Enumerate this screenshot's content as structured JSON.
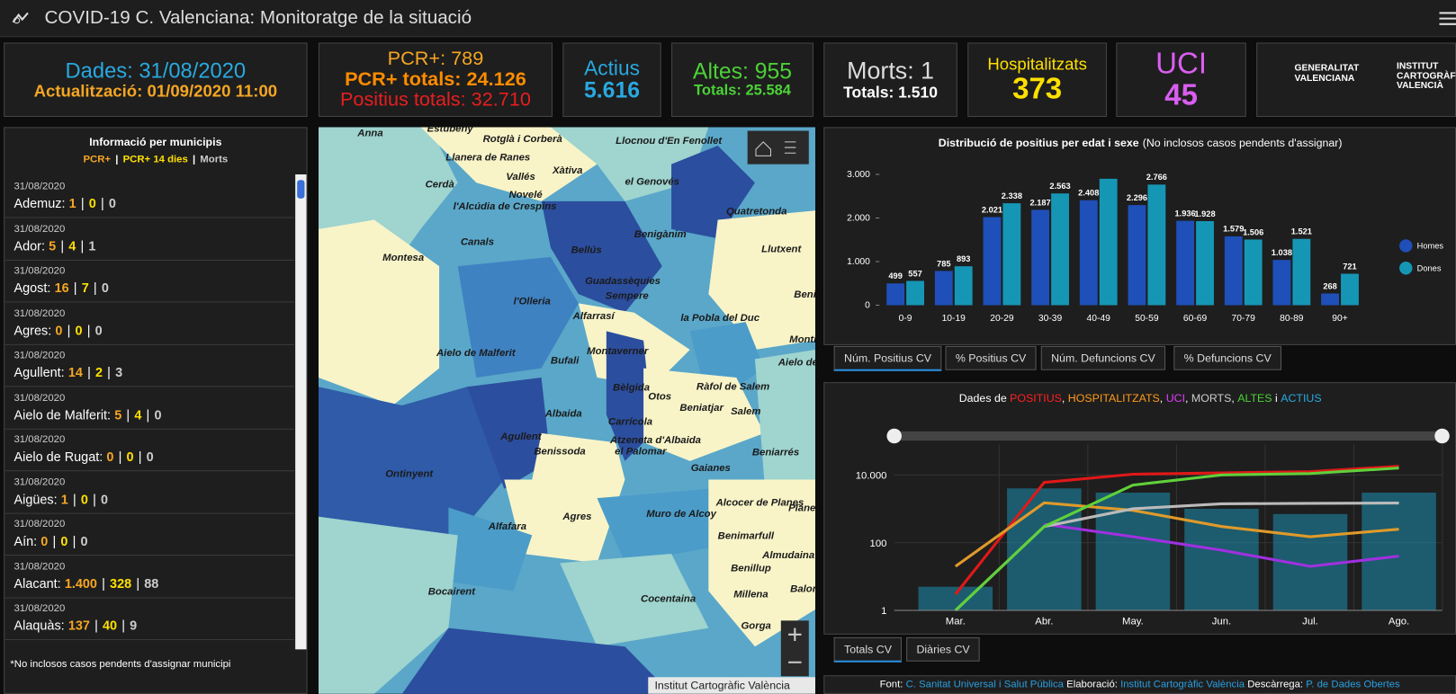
{
  "header": {
    "title": "COVID-19 C. Valenciana: Monitoratge de la situació"
  },
  "kpis": [
    {
      "lines": [
        "Dades: 31/08/2020",
        "Actualització: 01/09/2020 11:00"
      ]
    },
    {
      "lines": [
        "PCR+: 789",
        "PCR+ totals: 24.126",
        "Positius totals: 32.710"
      ]
    },
    {
      "lines": [
        "Actius",
        "5.616"
      ]
    },
    {
      "lines": [
        "Altes: 955",
        "Totals: 25.584"
      ]
    },
    {
      "lines": [
        "Morts: 1",
        "Totals: 1.510"
      ]
    },
    {
      "lines": [
        "Hospitalitzats",
        "373"
      ]
    },
    {
      "lines": [
        "UCI",
        "45"
      ]
    }
  ],
  "logos": [
    [
      "GENERALITAT",
      "VALENCIANA"
    ],
    [
      "INSTITUT",
      "CARTOGRÀFIC",
      "VALENCIÀ"
    ]
  ],
  "municipis": {
    "title": "Informació per municipis",
    "legend": [
      "PCR+",
      "PCR+ 14 dies",
      "Morts"
    ],
    "separator": "|",
    "items": [
      {
        "date": "31/08/2020",
        "name": "Ademuz:",
        "values": [
          "1",
          "0",
          "0"
        ]
      },
      {
        "date": "31/08/2020",
        "name": "Ador:",
        "values": [
          "5",
          "4",
          "1"
        ]
      },
      {
        "date": "31/08/2020",
        "name": "Agost:",
        "values": [
          "16",
          "7",
          "0"
        ]
      },
      {
        "date": "31/08/2020",
        "name": "Agres:",
        "values": [
          "0",
          "0",
          "0"
        ]
      },
      {
        "date": "31/08/2020",
        "name": "Agullent:",
        "values": [
          "14",
          "2",
          "3"
        ]
      },
      {
        "date": "31/08/2020",
        "name": "Aielo de Malferit:",
        "values": [
          "5",
          "4",
          "0"
        ]
      },
      {
        "date": "31/08/2020",
        "name": "Aielo de Rugat:",
        "values": [
          "0",
          "0",
          "0"
        ]
      },
      {
        "date": "31/08/2020",
        "name": "Aigües:",
        "values": [
          "1",
          "0",
          "0"
        ]
      },
      {
        "date": "31/08/2020",
        "name": "Aín:",
        "values": [
          "0",
          "0",
          "0"
        ]
      },
      {
        "date": "31/08/2020",
        "name": "Alacant:",
        "values": [
          "1.400",
          "328",
          "88"
        ]
      },
      {
        "date": "31/08/2020",
        "name": "Alaquàs:",
        "values": [
          "137",
          "40",
          "9"
        ]
      }
    ],
    "footnote": "*No inclosos casos pendents d'assignar municipi"
  },
  "map": {
    "labels": [
      "Anna",
      "Estubeny",
      "Rotglà i Corberà",
      "Llocnou d'En Fenollet",
      "Llanera de Ranes",
      "Vallés",
      "Xàtiva",
      "Cerdà",
      "Novelé",
      "l'Alcúdia de Crespins",
      "el Genovés",
      "Canals",
      "Montesa",
      "Quatretonda",
      "Benigànim",
      "Bellús",
      "Llutxent",
      "Guadassèquies",
      "Sempere",
      "l'Olleria",
      "Alfarrasí",
      "la Pobla del Duc",
      "Aielo de Malferit",
      "Montaverner",
      "Bufali",
      "Bèlgida",
      "Otos",
      "Ràfol de Salem",
      "Beniatjar",
      "Salem",
      "Albaida",
      "Carrícola",
      "Atzeneta d'Albaida",
      "el Palomar",
      "Agullent",
      "Benissoda",
      "Ontinyent",
      "Gaianes",
      "Beniarrés",
      "Agres",
      "Alfafara",
      "Muro de Alcoy",
      "Alcocer de Planes",
      "Planes",
      "Benimarfull",
      "Almudaina",
      "Bocairent",
      "Benillup",
      "Cocentaina",
      "Millena",
      "Balones",
      "Gorga",
      "Montixelvo",
      "Aielo de Rugat",
      "Benicolet"
    ],
    "attribution": "Institut Cartogràfic València"
  },
  "chart_data": [
    {
      "type": "bar",
      "title_parts": [
        "Distribució de positius per edat i sexe",
        "(No inclosos casos pendents d'assignar)"
      ],
      "categories": [
        "0-9",
        "10-19",
        "20-29",
        "30-39",
        "40-49",
        "50-59",
        "60-69",
        "70-79",
        "80-89",
        "90+"
      ],
      "series": [
        {
          "name": "Homes",
          "color": "#1f4fb8",
          "values": [
            499,
            785,
            2021,
            2187,
            2408,
            2296,
            1936,
            1579,
            1038,
            268
          ],
          "value_labels": [
            "499",
            "785",
            "2.021",
            "2.187",
            "2.408",
            "2.296",
            "1.936",
            "1.579",
            "1.038",
            "268"
          ]
        },
        {
          "name": "Dones",
          "color": "#1696b5",
          "values": [
            557,
            893,
            2338,
            2563,
            2900,
            2766,
            1928,
            1506,
            1521,
            721
          ],
          "value_labels": [
            "557",
            "893",
            "2.338",
            "2.563",
            null,
            "2.766",
            "1.928",
            "1.506",
            "1.521",
            "721"
          ]
        }
      ],
      "ylim": [
        0,
        3000
      ],
      "yticks": [
        0,
        {
          "value": 1000,
          "label": "1.000"
        },
        {
          "value": 2000,
          "label": "2.000"
        },
        {
          "value": 3000,
          "label": "3.000"
        }
      ],
      "legend": "right"
    },
    {
      "type": "line",
      "title_parts": [
        {
          "text": "Dades de ",
          "color": "#ffffff"
        },
        {
          "text": "POSITIUS",
          "color": "#ff2020"
        },
        {
          "text": ", ",
          "color": "#ffffff"
        },
        {
          "text": "HOSPITALITZATS",
          "color": "#ff9a1a"
        },
        {
          "text": ", ",
          "color": "#ffffff"
        },
        {
          "text": "UCI",
          "color": "#e040fb"
        },
        {
          "text": ", ",
          "color": "#ffffff"
        },
        {
          "text": "MORTS",
          "color": "#cccccc"
        },
        {
          "text": ", ",
          "color": "#ffffff"
        },
        {
          "text": "ALTES",
          "color": "#4cd137"
        },
        {
          "text": " i ",
          "color": "#ffffff"
        },
        {
          "text": "ACTIUS",
          "color": "#29a9e0"
        }
      ],
      "categories": [
        "Mar.",
        "Abr.",
        "May.",
        "Jun.",
        "Jul.",
        "Ago."
      ],
      "log": true,
      "ylim": [
        1,
        80000
      ],
      "yticks": [
        1,
        100,
        {
          "value": 10000,
          "label": "10.000"
        }
      ],
      "series": [
        {
          "name": "ACTIUS",
          "color": "#1c8fb0",
          "style": "bar",
          "values": [
            5,
            4000,
            3000,
            1000,
            700,
            3000
          ]
        },
        {
          "name": "POSITIUS",
          "color": "#e01818",
          "values": [
            3,
            6000,
            10500,
            11500,
            12500,
            18000
          ]
        },
        {
          "name": "HOSPITALITZATS",
          "color": "#e09a2a",
          "values": [
            20,
            1500,
            900,
            300,
            150,
            250
          ]
        },
        {
          "name": "UCI",
          "color": "#a030e0",
          "values": [
            null,
            350,
            150,
            60,
            20,
            40
          ]
        },
        {
          "name": "MORTS",
          "color": "#bbbbbb",
          "values": [
            1,
            300,
            1000,
            1400,
            1450,
            1480
          ]
        },
        {
          "name": "ALTES",
          "color": "#5fd13a",
          "values": [
            1,
            300,
            5000,
            10000,
            11000,
            16000
          ]
        }
      ]
    }
  ],
  "tabs_top": [
    "Núm. Positius CV",
    "% Positius CV",
    "Núm. Defuncions CV",
    "% Defuncions CV"
  ],
  "tabs_bottom": [
    "Totals CV",
    "Diàries CV"
  ],
  "footer": [
    {
      "text": "Font: ",
      "link": false
    },
    {
      "text": "C. Sanitat Universal i Salut Pública",
      "link": true
    },
    {
      "text": " Elaboració: ",
      "link": false
    },
    {
      "text": "Institut Cartogràfic València",
      "link": true
    },
    {
      "text": " Descàrrega: ",
      "link": false
    },
    {
      "text": "P. de Dades Obertes",
      "link": true
    }
  ]
}
